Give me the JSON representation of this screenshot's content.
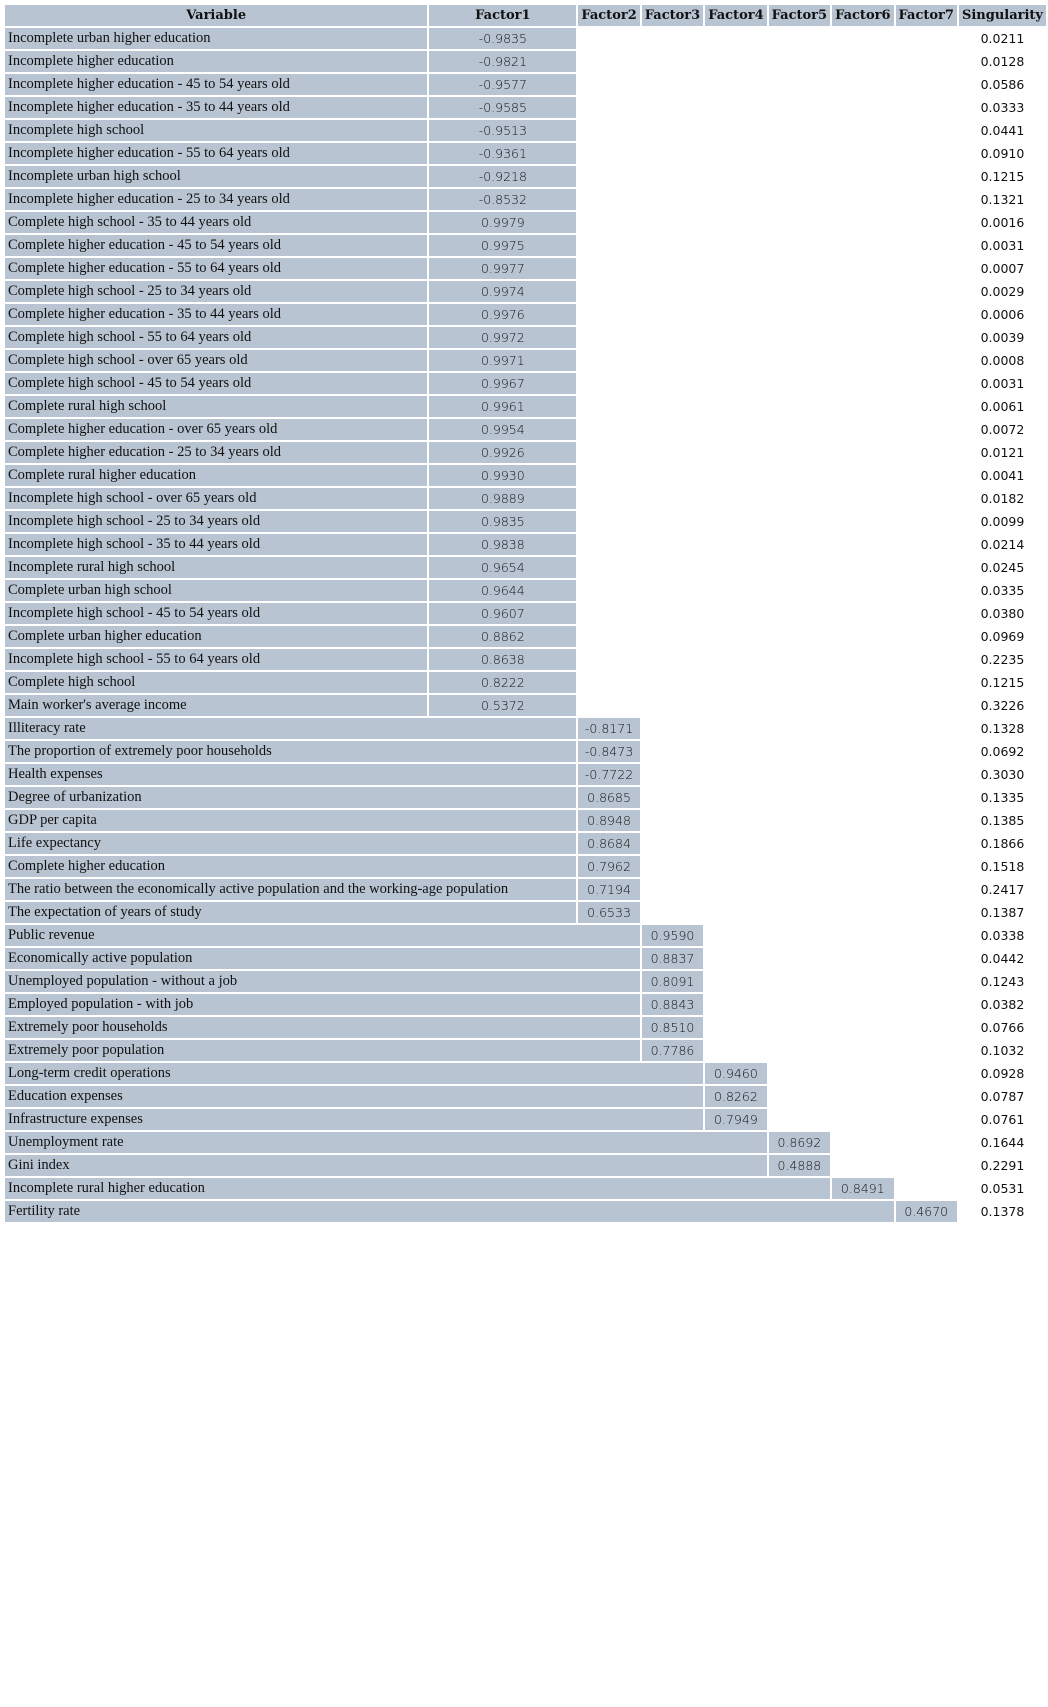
{
  "table": {
    "headers": [
      "Variable",
      "Factor1",
      "Factor2",
      "Factor3",
      "Factor4",
      "Factor5",
      "Factor6",
      "Factor7",
      "Singularity"
    ],
    "cell_color": "#b8c4d2",
    "rows": [
      {
        "variable": "Incomplete urban higher education",
        "factor": 1,
        "loading": "-0.9835",
        "singularity": "0.0211"
      },
      {
        "variable": "Incomplete higher education",
        "factor": 1,
        "loading": "-0.9821",
        "singularity": "0.0128"
      },
      {
        "variable": "Incomplete higher education - 45 to 54 years old",
        "factor": 1,
        "loading": "-0.9577",
        "singularity": "0.0586"
      },
      {
        "variable": "Incomplete higher education - 35 to 44 years old",
        "factor": 1,
        "loading": "-0.9585",
        "singularity": "0.0333"
      },
      {
        "variable": "Incomplete high school",
        "factor": 1,
        "loading": "-0.9513",
        "singularity": "0.0441"
      },
      {
        "variable": "Incomplete higher education - 55 to 64 years old",
        "factor": 1,
        "loading": "-0.9361",
        "singularity": "0.0910"
      },
      {
        "variable": "Incomplete urban high school",
        "factor": 1,
        "loading": "-0.9218",
        "singularity": "0.1215"
      },
      {
        "variable": "Incomplete higher education - 25 to 34 years old",
        "factor": 1,
        "loading": "-0.8532",
        "singularity": "0.1321"
      },
      {
        "variable": "Complete high school - 35 to 44 years old",
        "factor": 1,
        "loading": "0.9979",
        "singularity": "0.0016"
      },
      {
        "variable": "Complete higher education - 45 to 54 years old",
        "factor": 1,
        "loading": "0.9975",
        "singularity": "0.0031"
      },
      {
        "variable": "Complete higher education - 55 to 64 years old",
        "factor": 1,
        "loading": "0.9977",
        "singularity": "0.0007"
      },
      {
        "variable": "Complete high school - 25 to 34 years old",
        "factor": 1,
        "loading": "0.9974",
        "singularity": "0.0029"
      },
      {
        "variable": "Complete higher education - 35 to 44 years old",
        "factor": 1,
        "loading": "0.9976",
        "singularity": "0.0006"
      },
      {
        "variable": "Complete high school - 55 to 64 years old",
        "factor": 1,
        "loading": "0.9972",
        "singularity": "0.0039"
      },
      {
        "variable": "Complete high school - over 65 years old",
        "factor": 1,
        "loading": "0.9971",
        "singularity": "0.0008"
      },
      {
        "variable": "Complete high school - 45 to 54 years old",
        "factor": 1,
        "loading": "0.9967",
        "singularity": "0.0031"
      },
      {
        "variable": "Complete rural high school",
        "factor": 1,
        "loading": "0.9961",
        "singularity": "0.0061"
      },
      {
        "variable": "Complete higher education - over 65 years old",
        "factor": 1,
        "loading": "0.9954",
        "singularity": "0.0072"
      },
      {
        "variable": "Complete higher education - 25 to 34 years old",
        "factor": 1,
        "loading": "0.9926",
        "singularity": "0.0121"
      },
      {
        "variable": "Complete rural higher education",
        "factor": 1,
        "loading": "0.9930",
        "singularity": "0.0041"
      },
      {
        "variable": "Incomplete high school - over 65 years old",
        "factor": 1,
        "loading": "0.9889",
        "singularity": "0.0182"
      },
      {
        "variable": "Incomplete high school - 25 to 34 years old",
        "factor": 1,
        "loading": "0.9835",
        "singularity": "0.0099"
      },
      {
        "variable": "Incomplete high school - 35 to 44 years old",
        "factor": 1,
        "loading": "0.9838",
        "singularity": "0.0214"
      },
      {
        "variable": "Incomplete rural high school",
        "factor": 1,
        "loading": "0.9654",
        "singularity": "0.0245"
      },
      {
        "variable": "Complete urban high school",
        "factor": 1,
        "loading": "0.9644",
        "singularity": "0.0335"
      },
      {
        "variable": "Incomplete high school - 45 to 54 years old",
        "factor": 1,
        "loading": "0.9607",
        "singularity": "0.0380"
      },
      {
        "variable": "Complete urban higher education",
        "factor": 1,
        "loading": "0.8862",
        "singularity": "0.0969"
      },
      {
        "variable": "Incomplete high school - 55 to 64 years old",
        "factor": 1,
        "loading": "0.8638",
        "singularity": "0.2235"
      },
      {
        "variable": "Complete high school",
        "factor": 1,
        "loading": "0.8222",
        "singularity": "0.1215"
      },
      {
        "variable": "Main worker's average income",
        "factor": 1,
        "loading": "0.5372",
        "singularity": "0.3226"
      },
      {
        "variable": "Illiteracy rate",
        "factor": 2,
        "loading": "-0.8171",
        "singularity": "0.1328"
      },
      {
        "variable": "The proportion of extremely poor households",
        "factor": 2,
        "loading": "-0.8473",
        "singularity": "0.0692"
      },
      {
        "variable": "Health expenses",
        "factor": 2,
        "loading": "-0.7722",
        "singularity": "0.3030"
      },
      {
        "variable": "Degree of urbanization",
        "factor": 2,
        "loading": "0.8685",
        "singularity": "0.1335"
      },
      {
        "variable": "GDP per capita",
        "factor": 2,
        "loading": "0.8948",
        "singularity": "0.1385"
      },
      {
        "variable": "Life expectancy",
        "factor": 2,
        "loading": "0.8684",
        "singularity": "0.1866"
      },
      {
        "variable": "Complete higher education",
        "factor": 2,
        "loading": "0.7962",
        "singularity": "0.1518"
      },
      {
        "variable": "The ratio between the economically active population and the working-age population",
        "factor": 2,
        "loading": "0.7194",
        "singularity": "0.2417"
      },
      {
        "variable": "The expectation of years of study",
        "factor": 2,
        "loading": "0.6533",
        "singularity": "0.1387"
      },
      {
        "variable": "Public revenue",
        "factor": 3,
        "loading": "0.9590",
        "singularity": "0.0338"
      },
      {
        "variable": "Economically active population",
        "factor": 3,
        "loading": "0.8837",
        "singularity": "0.0442"
      },
      {
        "variable": "Unemployed population - without a job",
        "factor": 3,
        "loading": "0.8091",
        "singularity": "0.1243"
      },
      {
        "variable": "Employed population - with job",
        "factor": 3,
        "loading": "0.8843",
        "singularity": "0.0382"
      },
      {
        "variable": "Extremely poor households",
        "factor": 3,
        "loading": "0.8510",
        "singularity": "0.0766"
      },
      {
        "variable": "Extremely poor population",
        "factor": 3,
        "loading": "0.7786",
        "singularity": "0.1032"
      },
      {
        "variable": "Long-term credit operations",
        "factor": 4,
        "loading": "0.9460",
        "singularity": "0.0928"
      },
      {
        "variable": "Education expenses",
        "factor": 4,
        "loading": "0.8262",
        "singularity": "0.0787"
      },
      {
        "variable": "Infrastructure expenses",
        "factor": 4,
        "loading": "0.7949",
        "singularity": "0.0761"
      },
      {
        "variable": "Unemployment rate",
        "factor": 5,
        "loading": "0.8692",
        "singularity": "0.1644"
      },
      {
        "variable": "Gini index",
        "factor": 5,
        "loading": "0.4888",
        "singularity": "0.2291"
      },
      {
        "variable": "Incomplete rural higher education",
        "factor": 6,
        "loading": "0.8491",
        "singularity": "0.0531"
      },
      {
        "variable": "Fertility rate",
        "factor": 7,
        "loading": "0.4670",
        "singularity": "0.1378"
      }
    ]
  }
}
